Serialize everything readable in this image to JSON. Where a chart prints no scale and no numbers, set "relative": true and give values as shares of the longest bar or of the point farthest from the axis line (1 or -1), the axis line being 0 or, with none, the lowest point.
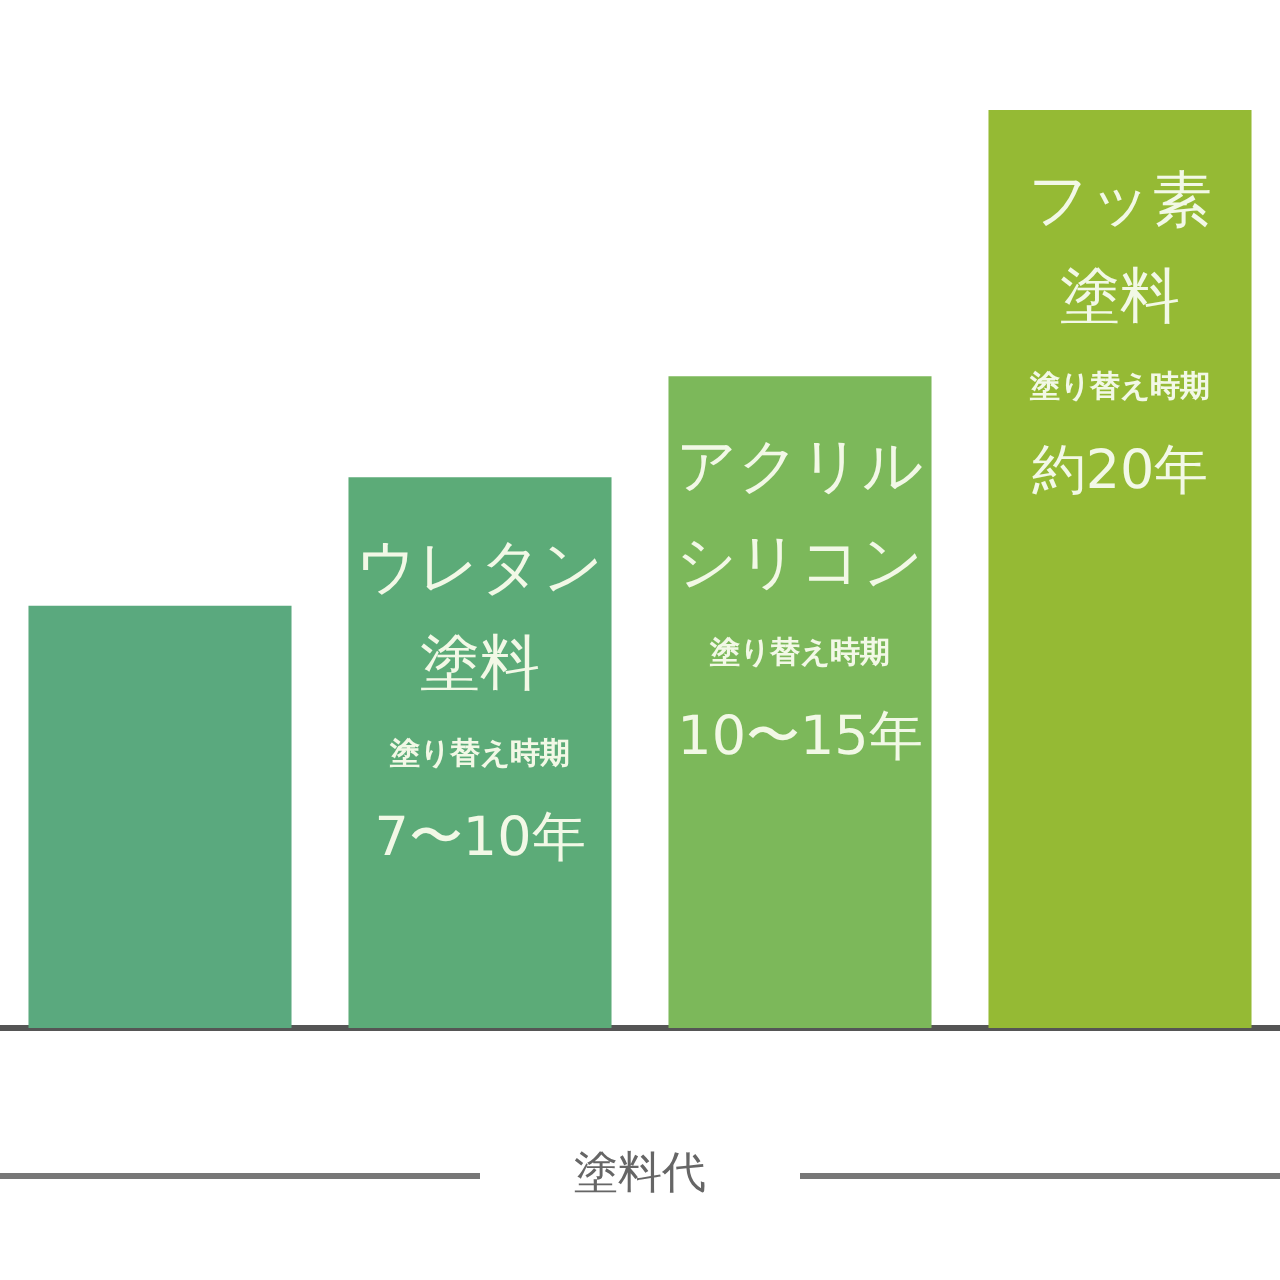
{
  "chart_data": {
    "type": "bar",
    "relative": true,
    "xlabel": "塗料代",
    "categories": [
      null,
      "ウレタン塗料",
      "アクリルシリコン",
      "フッ素塗料"
    ],
    "values": [
      0.46,
      0.6,
      0.71,
      1
    ],
    "colors": [
      "#5aa97e",
      "#5cab78",
      "#7cb85a",
      "#95ba34"
    ],
    "annotations": [
      "塗り替え時期",
      "7〜10年",
      "塗り替え時期",
      "10〜15年",
      "塗り替え時期",
      "約20年"
    ],
    "grid": false,
    "legend": false
  }
}
